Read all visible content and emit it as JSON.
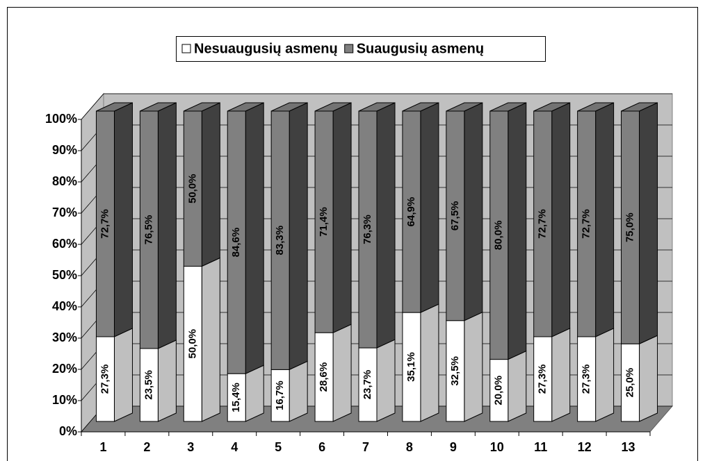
{
  "chart_data": {
    "type": "bar",
    "stacked": true,
    "categories": [
      "1",
      "2",
      "3",
      "4",
      "5",
      "6",
      "7",
      "8",
      "9",
      "10",
      "11",
      "12",
      "13"
    ],
    "series": [
      {
        "name": "Nesuaugusių asmenų",
        "color": "#ffffff",
        "values": [
          27.3,
          23.5,
          50.0,
          15.4,
          16.7,
          28.6,
          23.7,
          35.1,
          32.5,
          20.0,
          27.3,
          27.3,
          25.0
        ],
        "value_labels": [
          "27,3%",
          "23,5%",
          "50,0%",
          "15,4%",
          "16,7%",
          "28,6%",
          "23,7%",
          "35,1%",
          "32,5%",
          "20,0%",
          "27,3%",
          "27,3%",
          "25,0%"
        ]
      },
      {
        "name": "Suaugusių asmenų",
        "color": "#808080",
        "values": [
          72.7,
          76.5,
          50.0,
          84.6,
          83.3,
          71.4,
          76.3,
          64.9,
          67.5,
          80.0,
          72.7,
          72.7,
          75.0
        ],
        "value_labels": [
          "72,7%",
          "76,5%",
          "50,0%",
          "84,6%",
          "83,3%",
          "71,4%",
          "76,3%",
          "64,9%",
          "67,5%",
          "80,0%",
          "72,7%",
          "72,7%",
          "75,0%"
        ]
      }
    ],
    "ylim": [
      0,
      100
    ],
    "yticks": [
      {
        "value": 0,
        "label": "0%"
      },
      {
        "value": 10,
        "label": "10%"
      },
      {
        "value": 20,
        "label": "20%"
      },
      {
        "value": 30,
        "label": "30%"
      },
      {
        "value": 40,
        "label": "40%"
      },
      {
        "value": 50,
        "label": "50%"
      },
      {
        "value": 60,
        "label": "60%"
      },
      {
        "value": 70,
        "label": "70%"
      },
      {
        "value": 80,
        "label": "80%"
      },
      {
        "value": 90,
        "label": "90%"
      },
      {
        "value": 100,
        "label": "100%"
      }
    ],
    "grid": true,
    "legend": "top"
  }
}
